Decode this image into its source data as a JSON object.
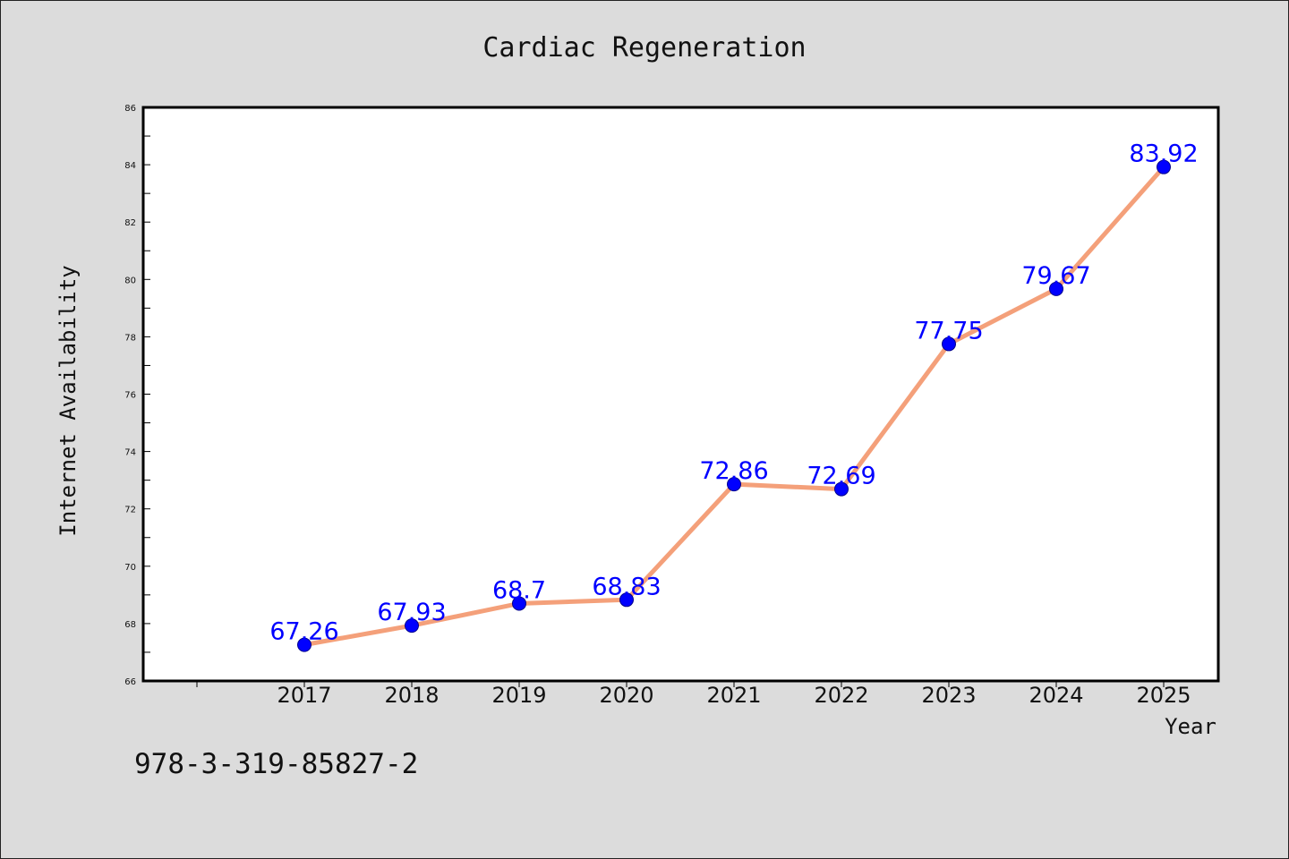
{
  "chart_data": {
    "type": "line",
    "title": "Cardiac Regeneration",
    "xlabel": "Year",
    "ylabel": "Internet Availability",
    "categories": [
      "2017",
      "2018",
      "2019",
      "2020",
      "2021",
      "2022",
      "2023",
      "2024",
      "2025"
    ],
    "series": [
      {
        "values": [
          67.26,
          67.93,
          68.7,
          68.83,
          72.86,
          72.69,
          77.75,
          79.67,
          83.92
        ]
      }
    ],
    "data_labels": [
      "67.26",
      "67.93",
      "68.7",
      "68.83",
      "72.86",
      "72.69",
      "77.75",
      "79.67",
      "83.92"
    ],
    "ylim": [
      66,
      86
    ],
    "yticks": [
      "66",
      "68",
      "70",
      "72",
      "74",
      "76",
      "78",
      "80",
      "82",
      "84",
      "86"
    ],
    "grid": false,
    "legend": "none",
    "colors": {
      "line": "#f4a07a",
      "marker": "#0000ff",
      "label": "#0000ff",
      "background": "#dcdcdc",
      "plot_area": "#ffffff"
    }
  },
  "footer": {
    "isbn": "978-3-319-85827-2"
  }
}
